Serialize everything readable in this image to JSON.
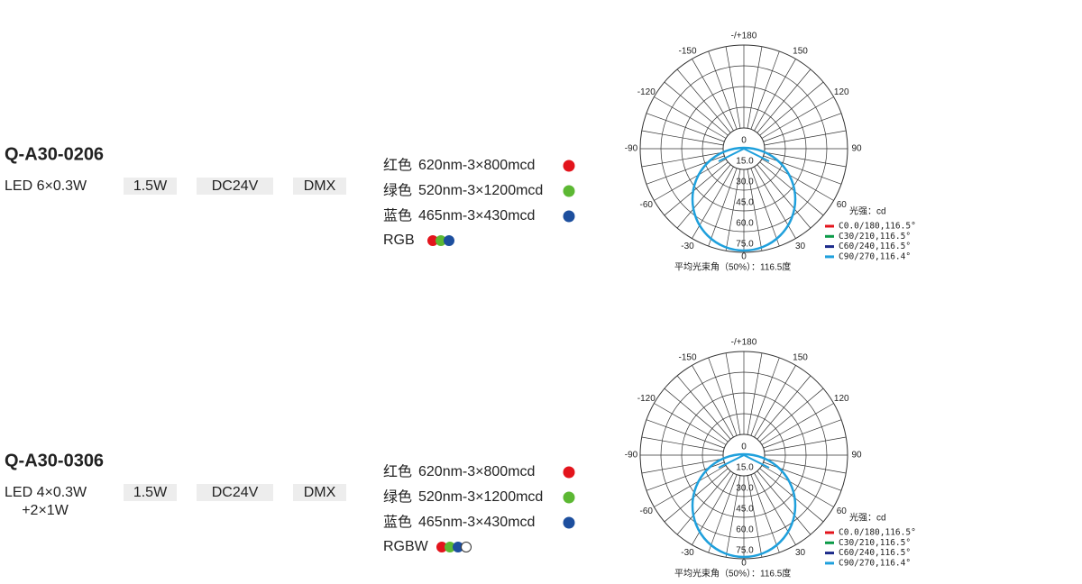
{
  "products": [
    {
      "model": "Q-A30-0206",
      "led": [
        "LED 6×0.3W"
      ],
      "power": "1.5W",
      "voltage": "DC24V",
      "control": "DMX",
      "colors": [
        {
          "name": "红色",
          "spec": "620nm-3×800mcd"
        },
        {
          "name": "绿色",
          "spec": "520nm-3×1200mcd"
        },
        {
          "name": "蓝色",
          "spec": "465nm-3×430mcd"
        }
      ],
      "mix": "RGB",
      "polar": {
        "angles": [
          "-/+180",
          "150",
          "120",
          "90",
          "60",
          "30",
          "0",
          "-30",
          "-60",
          "-90",
          "-120",
          "-150"
        ],
        "center": "0",
        "rings": [
          "15.0",
          "30.0",
          "45.0",
          "60.0",
          "75.0"
        ],
        "unit": "光强：cd",
        "legend": [
          "C0.0/180,116.5°",
          "C30/210,116.5°",
          "C60/240,116.5°",
          "C90/270,116.4°"
        ],
        "caption": "平均光束角（50%）：116.5度"
      }
    },
    {
      "model": "Q-A30-0306",
      "led": [
        "LED 4×0.3W",
        "+2×1W"
      ],
      "power": "1.5W",
      "voltage": "DC24V",
      "control": "DMX",
      "colors": [
        {
          "name": "红色",
          "spec": "620nm-3×800mcd"
        },
        {
          "name": "绿色",
          "spec": "520nm-3×1200mcd"
        },
        {
          "name": "蓝色",
          "spec": "465nm-3×430mcd"
        }
      ],
      "mix": "RGBW",
      "polar": {
        "angles": [
          "-/+180",
          "150",
          "120",
          "90",
          "60",
          "30",
          "0",
          "-30",
          "-60",
          "-90",
          "-120",
          "-150"
        ],
        "center": "0",
        "rings": [
          "15.0",
          "30.0",
          "45.0",
          "60.0",
          "75.0"
        ],
        "unit": "光强：cd",
        "legend": [
          "C0.0/180,116.5°",
          "C30/210,116.5°",
          "C60/240,116.5°",
          "C90/270,116.4°"
        ],
        "caption": "平均光束角（50%）：116.5度"
      }
    }
  ]
}
